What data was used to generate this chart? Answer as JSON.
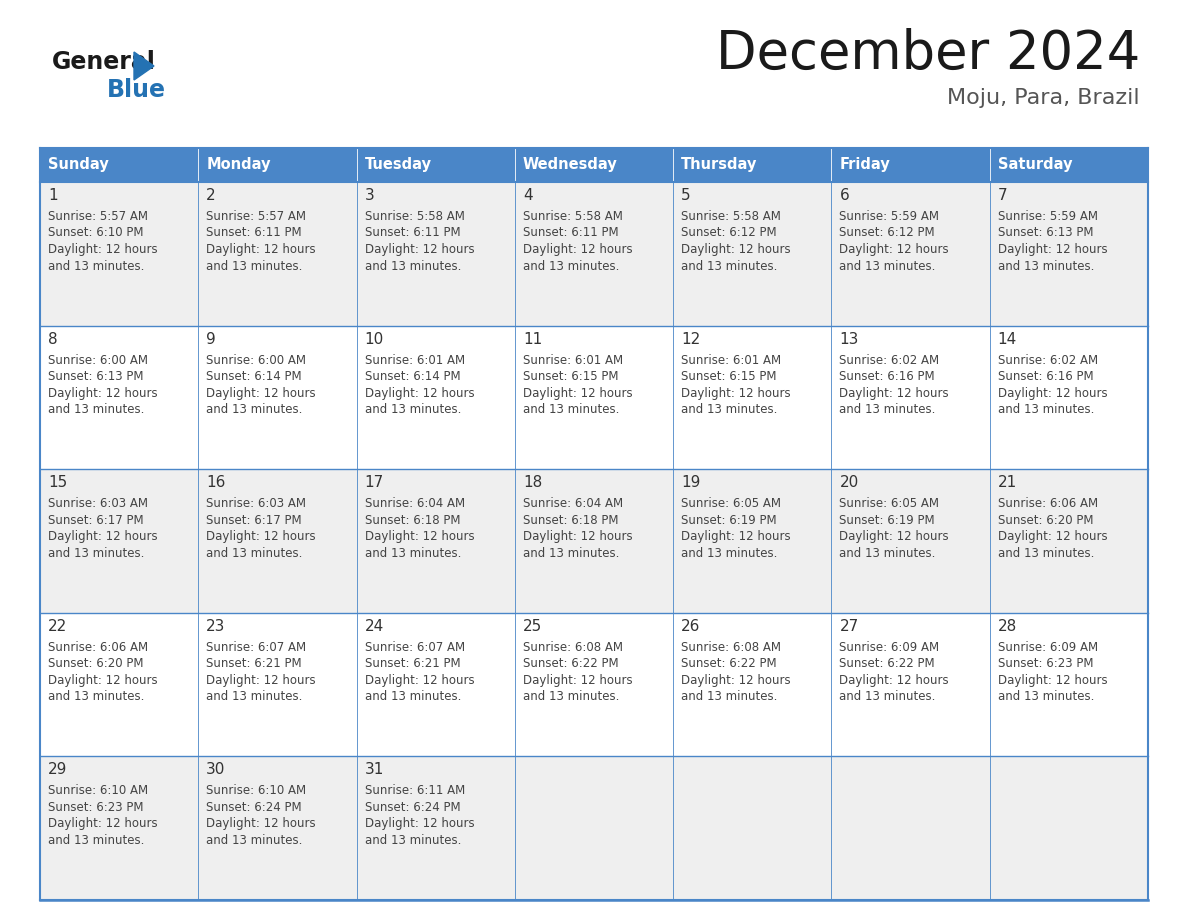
{
  "title": "December 2024",
  "subtitle": "Moju, Para, Brazil",
  "days_of_week": [
    "Sunday",
    "Monday",
    "Tuesday",
    "Wednesday",
    "Thursday",
    "Friday",
    "Saturday"
  ],
  "header_bg": "#4A86C8",
  "header_text": "#FFFFFF",
  "cell_bg_white": "#FFFFFF",
  "cell_bg_gray": "#EFEFEF",
  "border_color": "#4A86C8",
  "inner_border_color": "#AAAAAA",
  "day_num_color": "#333333",
  "text_color": "#444444",
  "title_color": "#1a1a1a",
  "subtitle_color": "#555555",
  "logo_general_color": "#1a1a1a",
  "logo_blue_color": "#2472B3",
  "figsize": [
    11.88,
    9.18
  ],
  "dpi": 100,
  "weeks": [
    [
      {
        "day": 1,
        "sunrise": "5:57 AM",
        "sunset": "6:10 PM",
        "daylight": "12 hours and 13 minutes."
      },
      {
        "day": 2,
        "sunrise": "5:57 AM",
        "sunset": "6:11 PM",
        "daylight": "12 hours and 13 minutes."
      },
      {
        "day": 3,
        "sunrise": "5:58 AM",
        "sunset": "6:11 PM",
        "daylight": "12 hours and 13 minutes."
      },
      {
        "day": 4,
        "sunrise": "5:58 AM",
        "sunset": "6:11 PM",
        "daylight": "12 hours and 13 minutes."
      },
      {
        "day": 5,
        "sunrise": "5:58 AM",
        "sunset": "6:12 PM",
        "daylight": "12 hours and 13 minutes."
      },
      {
        "day": 6,
        "sunrise": "5:59 AM",
        "sunset": "6:12 PM",
        "daylight": "12 hours and 13 minutes."
      },
      {
        "day": 7,
        "sunrise": "5:59 AM",
        "sunset": "6:13 PM",
        "daylight": "12 hours and 13 minutes."
      }
    ],
    [
      {
        "day": 8,
        "sunrise": "6:00 AM",
        "sunset": "6:13 PM",
        "daylight": "12 hours and 13 minutes."
      },
      {
        "day": 9,
        "sunrise": "6:00 AM",
        "sunset": "6:14 PM",
        "daylight": "12 hours and 13 minutes."
      },
      {
        "day": 10,
        "sunrise": "6:01 AM",
        "sunset": "6:14 PM",
        "daylight": "12 hours and 13 minutes."
      },
      {
        "day": 11,
        "sunrise": "6:01 AM",
        "sunset": "6:15 PM",
        "daylight": "12 hours and 13 minutes."
      },
      {
        "day": 12,
        "sunrise": "6:01 AM",
        "sunset": "6:15 PM",
        "daylight": "12 hours and 13 minutes."
      },
      {
        "day": 13,
        "sunrise": "6:02 AM",
        "sunset": "6:16 PM",
        "daylight": "12 hours and 13 minutes."
      },
      {
        "day": 14,
        "sunrise": "6:02 AM",
        "sunset": "6:16 PM",
        "daylight": "12 hours and 13 minutes."
      }
    ],
    [
      {
        "day": 15,
        "sunrise": "6:03 AM",
        "sunset": "6:17 PM",
        "daylight": "12 hours and 13 minutes."
      },
      {
        "day": 16,
        "sunrise": "6:03 AM",
        "sunset": "6:17 PM",
        "daylight": "12 hours and 13 minutes."
      },
      {
        "day": 17,
        "sunrise": "6:04 AM",
        "sunset": "6:18 PM",
        "daylight": "12 hours and 13 minutes."
      },
      {
        "day": 18,
        "sunrise": "6:04 AM",
        "sunset": "6:18 PM",
        "daylight": "12 hours and 13 minutes."
      },
      {
        "day": 19,
        "sunrise": "6:05 AM",
        "sunset": "6:19 PM",
        "daylight": "12 hours and 13 minutes."
      },
      {
        "day": 20,
        "sunrise": "6:05 AM",
        "sunset": "6:19 PM",
        "daylight": "12 hours and 13 minutes."
      },
      {
        "day": 21,
        "sunrise": "6:06 AM",
        "sunset": "6:20 PM",
        "daylight": "12 hours and 13 minutes."
      }
    ],
    [
      {
        "day": 22,
        "sunrise": "6:06 AM",
        "sunset": "6:20 PM",
        "daylight": "12 hours and 13 minutes."
      },
      {
        "day": 23,
        "sunrise": "6:07 AM",
        "sunset": "6:21 PM",
        "daylight": "12 hours and 13 minutes."
      },
      {
        "day": 24,
        "sunrise": "6:07 AM",
        "sunset": "6:21 PM",
        "daylight": "12 hours and 13 minutes."
      },
      {
        "day": 25,
        "sunrise": "6:08 AM",
        "sunset": "6:22 PM",
        "daylight": "12 hours and 13 minutes."
      },
      {
        "day": 26,
        "sunrise": "6:08 AM",
        "sunset": "6:22 PM",
        "daylight": "12 hours and 13 minutes."
      },
      {
        "day": 27,
        "sunrise": "6:09 AM",
        "sunset": "6:22 PM",
        "daylight": "12 hours and 13 minutes."
      },
      {
        "day": 28,
        "sunrise": "6:09 AM",
        "sunset": "6:23 PM",
        "daylight": "12 hours and 13 minutes."
      }
    ],
    [
      {
        "day": 29,
        "sunrise": "6:10 AM",
        "sunset": "6:23 PM",
        "daylight": "12 hours and 13 minutes."
      },
      {
        "day": 30,
        "sunrise": "6:10 AM",
        "sunset": "6:24 PM",
        "daylight": "12 hours and 13 minutes."
      },
      {
        "day": 31,
        "sunrise": "6:11 AM",
        "sunset": "6:24 PM",
        "daylight": "12 hours and 13 minutes."
      },
      null,
      null,
      null,
      null
    ]
  ]
}
